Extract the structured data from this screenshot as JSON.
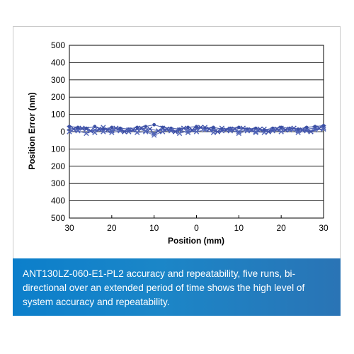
{
  "chart_data": {
    "type": "scatter",
    "title": "",
    "xlabel": "Position (mm)",
    "ylabel": "Position Error (nm)",
    "x_axis": {
      "range": [
        -30,
        30
      ],
      "ticks": [
        -30,
        -20,
        -10,
        0,
        10,
        20,
        30
      ],
      "tick_labels": [
        "30",
        "20",
        "10",
        "0",
        "10",
        "20",
        "30"
      ]
    },
    "y_axis": {
      "range": [
        -500,
        500
      ],
      "ticks": [
        500,
        400,
        300,
        200,
        100,
        0,
        -100,
        -200,
        -300,
        -400,
        -500
      ],
      "tick_labels": [
        "500",
        "400",
        "300",
        "200",
        "100",
        "0",
        "100",
        "200",
        "300",
        "400",
        "500"
      ]
    },
    "grid": "horizontal",
    "legend": "none",
    "series": [
      {
        "marker": "x",
        "color": "#4a5fb0",
        "x": [
          -30,
          -28,
          -26,
          -24,
          -22,
          -20,
          -18,
          -16,
          -14,
          -12,
          -10,
          -8,
          -6,
          -4,
          -2,
          0,
          2,
          4,
          6,
          8,
          10,
          12,
          14,
          16,
          18,
          20,
          22,
          24,
          26,
          28,
          30
        ],
        "y": [
          20,
          10,
          15,
          -5,
          25,
          5,
          10,
          0,
          15,
          5,
          -10,
          20,
          5,
          10,
          -5,
          15,
          25,
          10,
          20,
          5,
          0,
          10,
          -5,
          15,
          5,
          20,
          10,
          5,
          15,
          20,
          25
        ]
      },
      {
        "marker": "dot",
        "color": "#3b4fa3",
        "x": [
          -30,
          -28,
          -26,
          -24,
          -22,
          -20,
          -18,
          -16,
          -14,
          -12,
          -10,
          -8,
          -6,
          -4,
          -2,
          0,
          2,
          4,
          6,
          8,
          10,
          12,
          14,
          16,
          18,
          20,
          22,
          24,
          26,
          28,
          30
        ],
        "y": [
          30,
          25,
          20,
          30,
          15,
          25,
          20,
          15,
          25,
          30,
          40,
          25,
          20,
          15,
          25,
          30,
          20,
          25,
          15,
          20,
          25,
          15,
          20,
          10,
          20,
          25,
          20,
          15,
          25,
          30,
          35
        ]
      },
      {
        "marker": "x",
        "color": "#5366b8",
        "x": [
          -30,
          -28,
          -26,
          -24,
          -22,
          -20,
          -18,
          -16,
          -14,
          -12,
          -10,
          -8,
          -6,
          -4,
          -2,
          0,
          2,
          4,
          6,
          8,
          10,
          12,
          14,
          16,
          18,
          20,
          22,
          24,
          26,
          28,
          30
        ],
        "y": [
          0,
          5,
          -10,
          10,
          0,
          -5,
          5,
          10,
          -5,
          0,
          -20,
          0,
          10,
          -10,
          5,
          0,
          10,
          -5,
          5,
          15,
          -10,
          5,
          0,
          -5,
          10,
          0,
          15,
          -5,
          5,
          10,
          15
        ]
      },
      {
        "marker": "x",
        "color": "#3d4fa8",
        "x": [
          -29,
          -27,
          -25,
          -23,
          -21,
          -19,
          -17,
          -15,
          -13,
          -11,
          -9,
          -7,
          -5,
          -3,
          -1,
          1,
          3,
          5,
          7,
          9,
          11,
          13,
          15,
          17,
          19,
          21,
          23,
          25,
          27,
          29
        ],
        "y": [
          15,
          20,
          5,
          15,
          10,
          20,
          0,
          10,
          20,
          15,
          5,
          15,
          0,
          20,
          10,
          25,
          15,
          0,
          10,
          15,
          20,
          10,
          15,
          0,
          15,
          10,
          20,
          10,
          0,
          20
        ]
      }
    ]
  },
  "caption": {
    "text": "ANT130LZ-060-E1-PL2 accuracy and repeatability, five runs, bi-directional over an extended period of time shows the high level of system accuracy and repeatability."
  }
}
